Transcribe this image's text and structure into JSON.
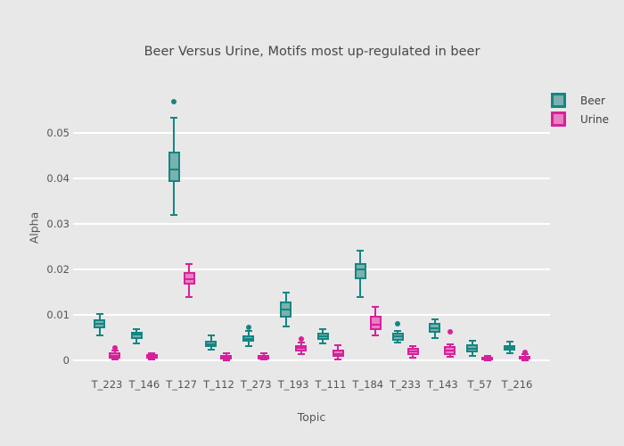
{
  "title": "Beer Versus Urine, Motifs most up-regulated in beer",
  "colors": {
    "background": "#e8e8e8",
    "gridline": "#ffffff",
    "text": "#555555",
    "title_text": "#474747",
    "beer_line": "#148682",
    "beer_fill": "#79b1ae",
    "urine_line": "#d6219c",
    "urine_fill": "#e77fc0"
  },
  "legend": {
    "position": "top-right",
    "items": [
      {
        "label": "Beer",
        "line": "#148682",
        "fill": "#79b1ae"
      },
      {
        "label": "Urine",
        "line": "#d6219c",
        "fill": "#e77fc0"
      }
    ]
  },
  "chart_data": {
    "type": "box",
    "title": "Beer Versus Urine, Motifs most up-regulated in beer",
    "xlabel": "Topic",
    "ylabel": "Alpha",
    "ylim": [
      0,
      0.0585
    ],
    "yticks": [
      0,
      0.01,
      0.02,
      0.03,
      0.04,
      0.05
    ],
    "grid": true,
    "categories": [
      "T_223",
      "T_146",
      "T_127",
      "T_112",
      "T_273",
      "T_193",
      "T_111",
      "T_184",
      "T_233",
      "T_143",
      "T_57",
      "T_216"
    ],
    "series": [
      {
        "name": "Beer",
        "line": "#148682",
        "fill": "#79b1ae",
        "boxes": [
          {
            "whislo": 0.0055,
            "q1": 0.007,
            "med": 0.0081,
            "q3": 0.009,
            "whishi": 0.0101,
            "fliers": []
          },
          {
            "whislo": 0.0037,
            "q1": 0.0047,
            "med": 0.0056,
            "q3": 0.0063,
            "whishi": 0.0068,
            "fliers": []
          },
          {
            "whislo": 0.032,
            "q1": 0.0393,
            "med": 0.042,
            "q3": 0.0458,
            "whishi": 0.0533,
            "fliers": [
              0.0568
            ]
          },
          {
            "whislo": 0.0023,
            "q1": 0.0029,
            "med": 0.0036,
            "q3": 0.0043,
            "whishi": 0.0054,
            "fliers": []
          },
          {
            "whislo": 0.0031,
            "q1": 0.0041,
            "med": 0.0048,
            "q3": 0.0055,
            "whishi": 0.0065,
            "fliers": [
              0.0073
            ]
          },
          {
            "whislo": 0.0075,
            "q1": 0.0095,
            "med": 0.0112,
            "q3": 0.013,
            "whishi": 0.015,
            "fliers": []
          },
          {
            "whislo": 0.0037,
            "q1": 0.0045,
            "med": 0.0053,
            "q3": 0.006,
            "whishi": 0.0069,
            "fliers": []
          },
          {
            "whislo": 0.014,
            "q1": 0.0178,
            "med": 0.02,
            "q3": 0.0214,
            "whishi": 0.0242,
            "fliers": []
          },
          {
            "whislo": 0.0039,
            "q1": 0.0044,
            "med": 0.0053,
            "q3": 0.006,
            "whishi": 0.0064,
            "fliers": [
              0.008
            ]
          },
          {
            "whislo": 0.0049,
            "q1": 0.006,
            "med": 0.0071,
            "q3": 0.0082,
            "whishi": 0.0091,
            "fliers": []
          },
          {
            "whislo": 0.0009,
            "q1": 0.0018,
            "med": 0.0026,
            "q3": 0.0035,
            "whishi": 0.0044,
            "fliers": []
          },
          {
            "whislo": 0.0016,
            "q1": 0.0021,
            "med": 0.0028,
            "q3": 0.0034,
            "whishi": 0.0041,
            "fliers": []
          }
        ]
      },
      {
        "name": "Urine",
        "line": "#d6219c",
        "fill": "#e77fc0",
        "boxes": [
          {
            "whislo": 0.0001,
            "q1": 0.0004,
            "med": 0.001,
            "q3": 0.0018,
            "whishi": 0.0022,
            "fliers": [
              0.0027
            ]
          },
          {
            "whislo": 0.0001,
            "q1": 0.0003,
            "med": 0.0008,
            "q3": 0.0013,
            "whishi": 0.0016,
            "fliers": []
          },
          {
            "whislo": 0.014,
            "q1": 0.0166,
            "med": 0.0179,
            "q3": 0.0194,
            "whishi": 0.0212,
            "fliers": []
          },
          {
            "whislo": 0.0,
            "q1": 0.0002,
            "med": 0.0005,
            "q3": 0.0012,
            "whishi": 0.0015,
            "fliers": []
          },
          {
            "whislo": 0.0001,
            "q1": 0.0002,
            "med": 0.0006,
            "q3": 0.0012,
            "whishi": 0.0016,
            "fliers": []
          },
          {
            "whislo": 0.0014,
            "q1": 0.0019,
            "med": 0.0027,
            "q3": 0.0034,
            "whishi": 0.004,
            "fliers": [
              0.0047
            ]
          },
          {
            "whislo": 0.0002,
            "q1": 0.0008,
            "med": 0.0014,
            "q3": 0.0024,
            "whishi": 0.0034,
            "fliers": []
          },
          {
            "whislo": 0.0055,
            "q1": 0.0067,
            "med": 0.0078,
            "q3": 0.0098,
            "whishi": 0.0118,
            "fliers": []
          },
          {
            "whislo": 0.0006,
            "q1": 0.0011,
            "med": 0.0019,
            "q3": 0.0027,
            "whishi": 0.0032,
            "fliers": []
          },
          {
            "whislo": 0.0008,
            "q1": 0.0012,
            "med": 0.0021,
            "q3": 0.0031,
            "whishi": 0.0036,
            "fliers": [
              0.0063
            ]
          },
          {
            "whislo": 0.0,
            "q1": 0.0001,
            "med": 0.0003,
            "q3": 0.0007,
            "whishi": 0.0009,
            "fliers": []
          },
          {
            "whislo": 0.0,
            "q1": 0.0002,
            "med": 0.0005,
            "q3": 0.0009,
            "whishi": 0.0013,
            "fliers": [
              0.0017
            ]
          }
        ]
      }
    ]
  }
}
